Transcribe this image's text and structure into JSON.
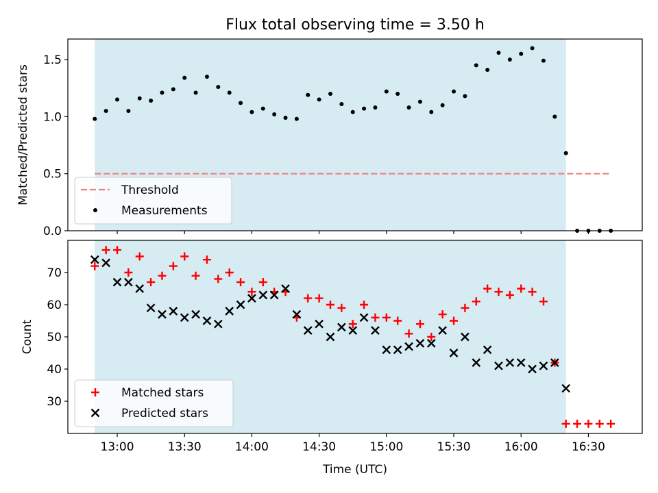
{
  "chart_data": [
    {
      "type": "scatter",
      "title": "Flux total observing time = 3.50 h",
      "xlabel": "",
      "ylabel": "Matched/Predicted stars",
      "xlim": [
        "12:38",
        "16:54"
      ],
      "ylim": [
        0,
        1.68
      ],
      "xticks": [
        "13:00",
        "13:30",
        "14:00",
        "14:30",
        "15:00",
        "15:30",
        "16:00",
        "16:30"
      ],
      "xtick_labels_visible": false,
      "yticks": [
        0.0,
        0.5,
        1.0,
        1.5
      ],
      "ytick_labels": [
        "0.0",
        "0.5",
        "1.0",
        "1.5"
      ],
      "shaded_span": {
        "start": "12:50",
        "end": "16:20",
        "color": "#add8e6"
      },
      "legend": {
        "placement": "lower-left",
        "entries": [
          "Threshold",
          "Measurements"
        ]
      },
      "series": [
        {
          "name": "Threshold",
          "kind": "line",
          "style": "dashed",
          "color": "#f08080",
          "x": [
            "12:50",
            "16:40"
          ],
          "y": [
            0.5,
            0.5
          ]
        },
        {
          "name": "Measurements",
          "kind": "scatter",
          "marker": "dot",
          "color": "#000000",
          "x": [
            "12:50",
            "12:55",
            "13:00",
            "13:05",
            "13:10",
            "13:15",
            "13:20",
            "13:25",
            "13:30",
            "13:35",
            "13:40",
            "13:45",
            "13:50",
            "13:55",
            "14:00",
            "14:05",
            "14:10",
            "14:15",
            "14:20",
            "14:25",
            "14:30",
            "14:35",
            "14:40",
            "14:45",
            "14:50",
            "14:55",
            "15:00",
            "15:05",
            "15:10",
            "15:15",
            "15:20",
            "15:25",
            "15:30",
            "15:35",
            "15:40",
            "15:45",
            "15:50",
            "15:55",
            "16:00",
            "16:05",
            "16:10",
            "16:15",
            "16:20",
            "16:25",
            "16:30",
            "16:35",
            "16:40"
          ],
          "y": [
            0.98,
            1.05,
            1.15,
            1.05,
            1.16,
            1.14,
            1.21,
            1.24,
            1.34,
            1.21,
            1.35,
            1.26,
            1.21,
            1.12,
            1.04,
            1.07,
            1.02,
            0.99,
            0.98,
            1.19,
            1.15,
            1.2,
            1.11,
            1.04,
            1.07,
            1.08,
            1.22,
            1.2,
            1.08,
            1.13,
            1.04,
            1.1,
            1.22,
            1.18,
            1.45,
            1.41,
            1.56,
            1.5,
            1.55,
            1.6,
            1.49,
            1.0,
            0.68,
            0.0,
            0.0,
            0.0,
            0.0
          ]
        }
      ]
    },
    {
      "type": "scatter",
      "title": "",
      "xlabel": "Time (UTC)",
      "ylabel": "Count",
      "xlim": [
        "12:38",
        "16:54"
      ],
      "ylim": [
        20,
        80
      ],
      "xticks": [
        "13:00",
        "13:30",
        "14:00",
        "14:30",
        "15:00",
        "15:30",
        "16:00",
        "16:30"
      ],
      "xtick_labels": [
        "13:00",
        "13:30",
        "14:00",
        "14:30",
        "15:00",
        "15:30",
        "16:00",
        "16:30"
      ],
      "yticks": [
        30,
        40,
        50,
        60,
        70
      ],
      "ytick_labels": [
        "30",
        "40",
        "50",
        "60",
        "70"
      ],
      "shaded_span": {
        "start": "12:50",
        "end": "16:20",
        "color": "#add8e6"
      },
      "legend": {
        "placement": "lower-left",
        "entries": [
          "Matched stars",
          "Predicted stars"
        ]
      },
      "series": [
        {
          "name": "Matched stars",
          "kind": "scatter",
          "marker": "plus",
          "color": "#ff0000",
          "x": [
            "12:50",
            "12:55",
            "13:00",
            "13:05",
            "13:10",
            "13:15",
            "13:20",
            "13:25",
            "13:30",
            "13:35",
            "13:40",
            "13:45",
            "13:50",
            "13:55",
            "14:00",
            "14:05",
            "14:10",
            "14:15",
            "14:20",
            "14:25",
            "14:30",
            "14:35",
            "14:40",
            "14:45",
            "14:50",
            "14:55",
            "15:00",
            "15:05",
            "15:10",
            "15:15",
            "15:20",
            "15:25",
            "15:30",
            "15:35",
            "15:40",
            "15:45",
            "15:50",
            "15:55",
            "16:00",
            "16:05",
            "16:10",
            "16:15",
            "16:20",
            "16:25",
            "16:30",
            "16:35",
            "16:40"
          ],
          "y": [
            72,
            77,
            77,
            70,
            75,
            67,
            69,
            72,
            75,
            69,
            74,
            68,
            70,
            67,
            64,
            67,
            64,
            64,
            56,
            62,
            62,
            60,
            59,
            54,
            60,
            56,
            56,
            55,
            51,
            54,
            50,
            57,
            55,
            59,
            61,
            65,
            64,
            63,
            65,
            64,
            61,
            42,
            23,
            23,
            23,
            23,
            23
          ]
        },
        {
          "name": "Predicted stars",
          "kind": "scatter",
          "marker": "x",
          "color": "#000000",
          "x": [
            "12:50",
            "12:55",
            "13:00",
            "13:05",
            "13:10",
            "13:15",
            "13:20",
            "13:25",
            "13:30",
            "13:35",
            "13:40",
            "13:45",
            "13:50",
            "13:55",
            "14:00",
            "14:05",
            "14:10",
            "14:15",
            "14:20",
            "14:25",
            "14:30",
            "14:35",
            "14:40",
            "14:45",
            "14:50",
            "14:55",
            "15:00",
            "15:05",
            "15:10",
            "15:15",
            "15:20",
            "15:25",
            "15:30",
            "15:35",
            "15:40",
            "15:45",
            "15:50",
            "15:55",
            "16:00",
            "16:05",
            "16:10",
            "16:15",
            "16:20"
          ],
          "y": [
            74,
            73,
            67,
            67,
            65,
            59,
            57,
            58,
            56,
            57,
            55,
            54,
            58,
            60,
            62,
            63,
            63,
            65,
            57,
            52,
            54,
            50,
            53,
            52,
            56,
            52,
            46,
            46,
            47,
            48,
            48,
            52,
            45,
            50,
            42,
            46,
            41,
            42,
            42,
            40,
            41,
            42,
            34
          ]
        }
      ]
    }
  ]
}
